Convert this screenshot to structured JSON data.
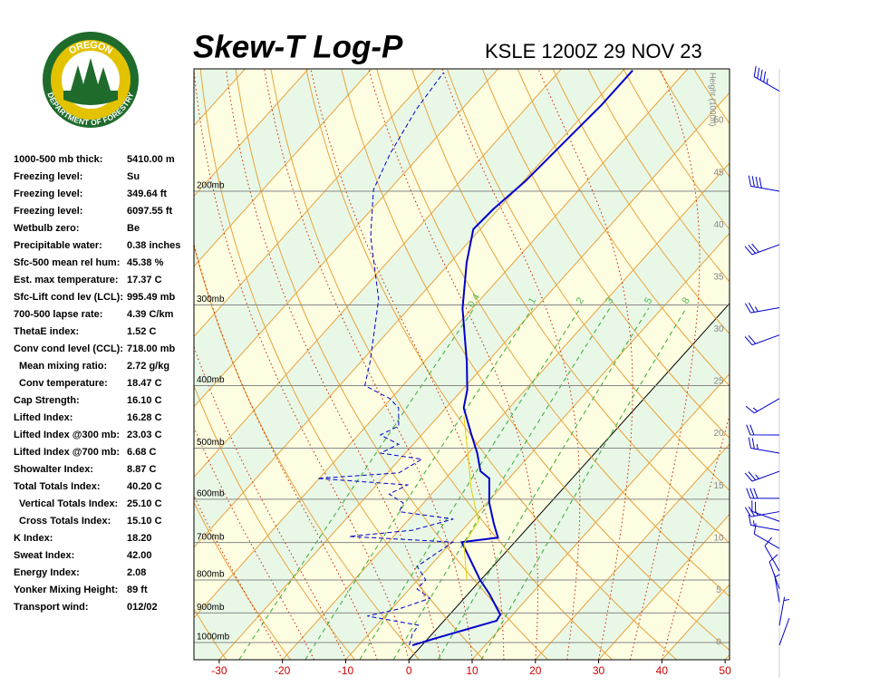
{
  "header": {
    "logo_top": "OREGON",
    "logo_bottom": "DEPARTMENT OF FORESTRY",
    "title": "Skew-T Log-P",
    "subtitle": "KSLE 1200Z 29 NOV 23"
  },
  "stats": {
    "rows": [
      [
        "1000-500 mb thick:",
        "5410.00 m"
      ],
      [
        "Freezing level:",
        "Su"
      ],
      [
        "Freezing level:",
        "349.64 ft"
      ],
      [
        "Freezing level:",
        "6097.55 ft"
      ],
      [
        "Wetbulb zero:",
        "Be"
      ],
      [
        "Precipitable water:",
        "0.38 inches"
      ],
      [
        "Sfc-500 mean rel hum:",
        "45.38 %"
      ],
      [
        "Est. max temperature:",
        "17.37 C"
      ],
      [
        "Sfc-Lift cond lev (LCL):",
        "995.49 mb"
      ],
      [
        "700-500 lapse rate:",
        "4.39 C/km"
      ],
      [
        "ThetaE index:",
        "1.52 C"
      ],
      [
        "Conv cond level (CCL):",
        "718.00 mb"
      ],
      [
        "Mean mixing ratio:",
        "2.72 g/kg"
      ],
      [
        "Conv temperature:",
        "18.47 C"
      ],
      [
        "Cap Strength:",
        "16.10 C"
      ],
      [
        "Lifted Index:",
        "16.28 C"
      ],
      [
        "Lifted Index @300 mb:",
        "23.03 C"
      ],
      [
        "Lifted Index @700 mb:",
        "6.68 C"
      ],
      [
        "Showalter Index:",
        "8.87 C"
      ],
      [
        "Total Totals Index:",
        "40.20 C"
      ],
      [
        "Vertical Totals Index:",
        "25.10 C"
      ],
      [
        "Cross Totals Index:",
        "15.10 C"
      ],
      [
        "K Index:",
        "18.20"
      ],
      [
        "Sweat Index:",
        "42.00"
      ],
      [
        "Energy Index:",
        "2.08"
      ],
      [
        "Yonker Mixing Height:",
        "89 ft"
      ],
      [
        "Transport wind:",
        "012/02"
      ]
    ]
  },
  "chart_data": {
    "type": "skewt",
    "xlim": [
      -34.0,
      50.7
    ],
    "xticks": [
      -30,
      -20,
      -10,
      0,
      10,
      20,
      30,
      40,
      50
    ],
    "plim": [
      1063.3,
      129.3
    ],
    "log_scale": true,
    "pressure_levels": [
      {
        "value": 1000,
        "label": "1000mb"
      },
      {
        "value": 900,
        "label": "900mb"
      },
      {
        "value": 800,
        "label": "800mb"
      },
      {
        "value": 700,
        "label": "700mb"
      },
      {
        "value": 600,
        "label": "600mb"
      },
      {
        "value": 500,
        "label": "500mb"
      },
      {
        "value": 400,
        "label": "400mb"
      },
      {
        "value": 300,
        "label": "300mb"
      },
      {
        "value": 200,
        "label": "200mb"
      }
    ],
    "height_label": "Height (1000ft)",
    "hlim": [
      -1.65,
      54.95
    ],
    "hticks": [
      0,
      5,
      10,
      15,
      20,
      25,
      30,
      35,
      40,
      45,
      50
    ],
    "mixing_ratios": [
      0.4,
      1,
      2,
      3,
      5,
      8
    ],
    "series": [
      {
        "color": "#0000cc",
        "dashed": false,
        "pressure": [
          1010,
          987,
          925,
          905,
          840,
          800,
          699,
          688,
          655,
          608,
          557,
          543,
          509,
          477,
          433,
          406,
          368,
          304,
          258,
          229,
          213,
          193,
          164,
          147,
          130
        ],
        "values": [
          -1.5,
          0.9,
          8.3,
          8.0,
          3.3,
          -0.1,
          -8.4,
          -3.3,
          -5.9,
          -9.6,
          -13.1,
          -15.5,
          -18.6,
          -22.1,
          -27.2,
          -29.2,
          -33.2,
          -41.5,
          -47.4,
          -51.1,
          -50.8,
          -49.7,
          -49.0,
          -48.5,
          -48.5
        ]
      },
      {
        "color": "#0000cc",
        "dashed": true,
        "pressure": [
          1010,
          971,
          940,
          910,
          887,
          854,
          826,
          800,
          762,
          699,
          685,
          670,
          644,
          627,
          608,
          589,
          570,
          557,
          546,
          520,
          509,
          493,
          477,
          462,
          433,
          419,
          400,
          368,
          294,
          235,
          199,
          175,
          149,
          131
        ],
        "values": [
          -2.0,
          -3.1,
          -3.4,
          -12.8,
          -8.8,
          -5.4,
          -8.8,
          -8.7,
          -12.0,
          -9.8,
          -27.0,
          -17.9,
          -13.0,
          -22.6,
          -23.2,
          -26.7,
          -25.1,
          -40.3,
          -28.2,
          -26.5,
          -33.9,
          -32.3,
          -36.5,
          -34.9,
          -37.5,
          -40.2,
          -46.0,
          -48.5,
          -56.1,
          -66.3,
          -72.5,
          -75.0,
          -77.2,
          -78.1
        ]
      },
      {
        "color": "#e0d000",
        "dashed": false,
        "pressure": [
          800,
          703,
          649,
          579,
          509,
          447
        ],
        "values": [
          -2.2,
          -7.8,
          -8.7,
          -14.4,
          -20.1,
          -25.9
        ]
      }
    ],
    "winds": {
      "pressure": [
        140,
        200,
        242,
        303,
        334,
        419,
        477,
        509,
        543,
        598,
        627,
        649,
        670,
        715,
        775,
        826,
        866,
        941,
        1010
      ],
      "direction": [
        300,
        280,
        250,
        260,
        250,
        240,
        270,
        280,
        250,
        270,
        260,
        290,
        280,
        300,
        330,
        340,
        350,
        10,
        20
      ],
      "speed": [
        45,
        40,
        30,
        25,
        20,
        15,
        20,
        25,
        25,
        30,
        25,
        20,
        15,
        10,
        10,
        10,
        5,
        5,
        2
      ]
    },
    "wind_color": "#0000cc"
  }
}
